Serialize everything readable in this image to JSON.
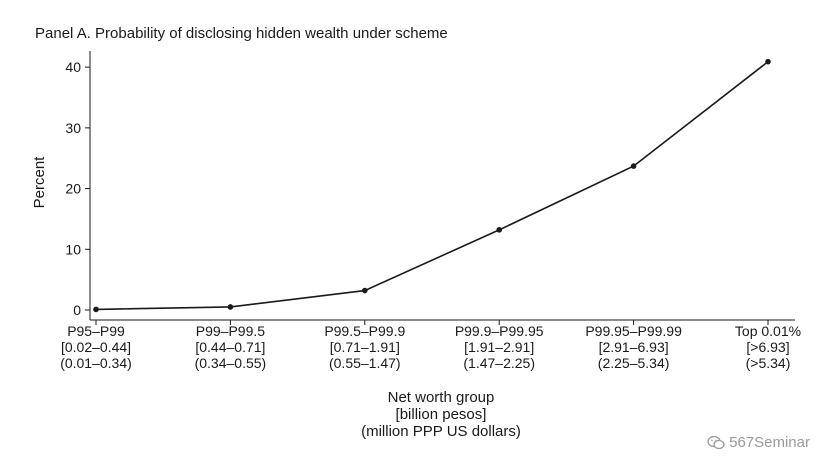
{
  "chart_data": {
    "type": "line",
    "title": "Panel A. Probability of disclosing hidden wealth under scheme",
    "ylabel": "Percent",
    "xlabel_lines": [
      "Net worth group",
      "[billion pesos]",
      "(million PPP US dollars)"
    ],
    "ylim": [
      0,
      42
    ],
    "yticks": [
      0,
      10,
      20,
      30,
      40
    ],
    "categories": [
      {
        "lines": [
          "P95–P99",
          "[0.02–0.44]",
          "(0.01–0.34)"
        ]
      },
      {
        "lines": [
          "P99–P99.5",
          "[0.44–0.71]",
          "(0.34–0.55)"
        ]
      },
      {
        "lines": [
          "P99.5–P99.9",
          "[0.71–1.91]",
          "(0.55–1.47)"
        ]
      },
      {
        "lines": [
          "P99.9–P99.95",
          "[1.91–2.91]",
          "(1.47–2.25)"
        ]
      },
      {
        "lines": [
          "P99.95–P99.99",
          "[2.91–6.93]",
          "(2.25–5.34)"
        ]
      },
      {
        "lines": [
          "Top 0.01%",
          "[>6.93]",
          "(>5.34)"
        ]
      }
    ],
    "values": [
      0.1,
      0.5,
      3.2,
      13.2,
      23.7,
      40.9
    ],
    "grid": false,
    "legend": "none"
  },
  "watermark": {
    "text": "567Seminar",
    "icon": "wechat-icon"
  }
}
